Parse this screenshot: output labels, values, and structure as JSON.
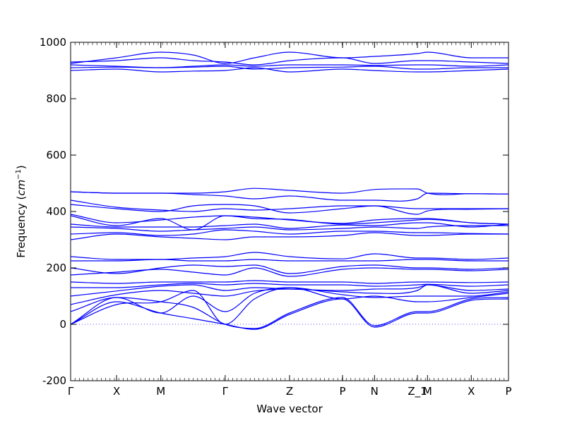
{
  "chart_data": {
    "type": "line",
    "xlabel": "Wave vector",
    "ylabel_text": "Frequency (",
    "ylabel_unit": "cm",
    "ylabel_exp": "−1",
    "ylabel_close": ")",
    "ylim": [
      -200,
      1000
    ],
    "yticks": [
      -200,
      0,
      200,
      400,
      600,
      800,
      1000
    ],
    "xlim": [
      0,
      1
    ],
    "xticks": [
      {
        "label": "Γ",
        "pos": 0.0
      },
      {
        "label": "X",
        "pos": 0.105
      },
      {
        "label": "M",
        "pos": 0.206
      },
      {
        "label": "Γ",
        "pos": 0.353
      },
      {
        "label": "Z",
        "pos": 0.5
      },
      {
        "label": "P",
        "pos": 0.621
      },
      {
        "label": "N",
        "pos": 0.694
      },
      {
        "label": "Z_1",
        "pos": 0.792
      },
      {
        "label": "M",
        "pos": 0.815
      },
      {
        "label": "X",
        "pos": 0.915
      },
      {
        "label": "P",
        "pos": 1.0
      }
    ],
    "zero_line": 0,
    "line_color": "#0000ff",
    "series": [
      {
        "x": [
          0,
          0.105,
          0.206,
          0.28,
          0.353,
          0.42,
          0.5,
          0.621,
          0.694,
          0.792,
          0.815,
          0.915,
          1.0
        ],
        "y": [
          0,
          80,
          40,
          20,
          0,
          -18,
          35,
          90,
          -10,
          40,
          40,
          85,
          90
        ]
      },
      {
        "x": [
          0,
          0.105,
          0.206,
          0.28,
          0.353,
          0.42,
          0.5,
          0.621,
          0.694,
          0.792,
          0.815,
          0.915,
          1.0
        ],
        "y": [
          0,
          95,
          80,
          60,
          0,
          -15,
          40,
          95,
          -5,
          45,
          45,
          90,
          95
        ]
      },
      {
        "x": [
          0,
          0.105,
          0.206,
          0.28,
          0.353,
          0.42,
          0.5,
          0.621,
          0.694,
          0.792,
          0.815,
          0.915,
          1.0
        ],
        "y": [
          0,
          70,
          80,
          120,
          0,
          90,
          130,
          90,
          100,
          80,
          80,
          95,
          110
        ]
      },
      {
        "x": [
          0,
          0.105,
          0.206,
          0.28,
          0.353,
          0.42,
          0.5,
          0.621,
          0.694,
          0.792,
          0.815,
          0.915,
          1.0
        ],
        "y": [
          45,
          95,
          40,
          100,
          45,
          110,
          130,
          105,
          95,
          100,
          100,
          100,
          115
        ]
      },
      {
        "x": [
          0,
          0.105,
          0.206,
          0.28,
          0.353,
          0.42,
          0.5,
          0.621,
          0.694,
          0.792,
          0.815,
          0.915,
          1.0
        ],
        "y": [
          70,
          105,
          120,
          110,
          100,
          118,
          125,
          115,
          110,
          120,
          140,
          110,
          120
        ]
      },
      {
        "x": [
          0,
          0.105,
          0.206,
          0.28,
          0.353,
          0.42,
          0.5,
          0.621,
          0.694,
          0.792,
          0.815,
          0.915,
          1.0
        ],
        "y": [
          100,
          118,
          135,
          140,
          120,
          130,
          125,
          120,
          125,
          130,
          140,
          120,
          125
        ]
      },
      {
        "x": [
          0,
          0.105,
          0.206,
          0.28,
          0.353,
          0.42,
          0.5,
          0.621,
          0.694,
          0.792,
          0.815,
          0.915,
          1.0
        ],
        "y": [
          130,
          130,
          140,
          145,
          140,
          145,
          140,
          140,
          135,
          140,
          142,
          135,
          140
        ]
      },
      {
        "x": [
          0,
          0.105,
          0.206,
          0.28,
          0.353,
          0.42,
          0.5,
          0.621,
          0.694,
          0.792,
          0.815,
          0.915,
          1.0
        ],
        "y": [
          150,
          145,
          150,
          150,
          150,
          155,
          150,
          150,
          145,
          150,
          150,
          148,
          150
        ]
      },
      {
        "x": [
          0,
          0.105,
          0.206,
          0.28,
          0.353,
          0.42,
          0.5,
          0.621,
          0.694,
          0.792,
          0.815,
          0.915,
          1.0
        ],
        "y": [
          175,
          185,
          195,
          185,
          175,
          200,
          170,
          195,
          200,
          195,
          195,
          190,
          195
        ]
      },
      {
        "x": [
          0,
          0.105,
          0.206,
          0.28,
          0.353,
          0.42,
          0.5,
          0.621,
          0.694,
          0.792,
          0.815,
          0.915,
          1.0
        ],
        "y": [
          200,
          180,
          200,
          210,
          205,
          210,
          180,
          205,
          210,
          200,
          200,
          195,
          200
        ]
      },
      {
        "x": [
          0,
          0.105,
          0.206,
          0.28,
          0.353,
          0.42,
          0.5,
          0.621,
          0.694,
          0.792,
          0.815,
          0.915,
          1.0
        ],
        "y": [
          225,
          225,
          230,
          225,
          225,
          230,
          225,
          225,
          225,
          230,
          230,
          225,
          225
        ]
      },
      {
        "x": [
          0,
          0.105,
          0.206,
          0.28,
          0.353,
          0.42,
          0.5,
          0.621,
          0.694,
          0.792,
          0.815,
          0.915,
          1.0
        ],
        "y": [
          240,
          230,
          230,
          235,
          240,
          255,
          240,
          232,
          250,
          235,
          235,
          230,
          235
        ]
      },
      {
        "x": [
          0,
          0.105,
          0.206,
          0.28,
          0.353,
          0.42,
          0.5,
          0.621,
          0.694,
          0.792,
          0.815,
          0.915,
          1.0
        ],
        "y": [
          300,
          320,
          310,
          305,
          300,
          310,
          310,
          315,
          325,
          315,
          315,
          320,
          320
        ]
      },
      {
        "x": [
          0,
          0.105,
          0.206,
          0.28,
          0.353,
          0.42,
          0.5,
          0.621,
          0.694,
          0.792,
          0.815,
          0.915,
          1.0
        ],
        "y": [
          320,
          325,
          315,
          320,
          335,
          330,
          320,
          330,
          330,
          325,
          325,
          322,
          320
        ]
      },
      {
        "x": [
          0,
          0.105,
          0.206,
          0.28,
          0.353,
          0.42,
          0.5,
          0.621,
          0.694,
          0.792,
          0.815,
          0.915,
          1.0
        ],
        "y": [
          345,
          340,
          330,
          335,
          340,
          345,
          335,
          340,
          345,
          340,
          345,
          350,
          350
        ]
      },
      {
        "x": [
          0,
          0.105,
          0.206,
          0.28,
          0.353,
          0.42,
          0.5,
          0.621,
          0.694,
          0.792,
          0.815,
          0.915,
          1.0
        ],
        "y": [
          355,
          345,
          345,
          345,
          350,
          355,
          340,
          352,
          350,
          360,
          360,
          345,
          355
        ]
      },
      {
        "x": [
          0,
          0.105,
          0.206,
          0.28,
          0.353,
          0.42,
          0.5,
          0.621,
          0.694,
          0.792,
          0.815,
          0.915,
          1.0
        ],
        "y": [
          385,
          350,
          375,
          335,
          385,
          375,
          372,
          355,
          360,
          370,
          372,
          360,
          355
        ]
      },
      {
        "x": [
          0,
          0.105,
          0.206,
          0.28,
          0.353,
          0.42,
          0.5,
          0.621,
          0.694,
          0.792,
          0.815,
          0.915,
          1.0
        ],
        "y": [
          390,
          360,
          370,
          380,
          385,
          380,
          370,
          358,
          370,
          375,
          375,
          360,
          355
        ]
      },
      {
        "x": [
          0,
          0.105,
          0.206,
          0.28,
          0.353,
          0.42,
          0.5,
          0.621,
          0.694,
          0.792,
          0.815,
          0.915,
          1.0
        ],
        "y": [
          425,
          410,
          400,
          420,
          425,
          420,
          395,
          410,
          420,
          390,
          402,
          408,
          410
        ]
      },
      {
        "x": [
          0,
          0.105,
          0.206,
          0.28,
          0.353,
          0.42,
          0.5,
          0.621,
          0.694,
          0.792,
          0.815,
          0.915,
          1.0
        ],
        "y": [
          440,
          415,
          405,
          400,
          410,
          405,
          410,
          420,
          420,
          410,
          410,
          410,
          410
        ]
      },
      {
        "x": [
          0,
          0.105,
          0.206,
          0.28,
          0.353,
          0.42,
          0.5,
          0.621,
          0.694,
          0.792,
          0.815,
          0.915,
          1.0
        ],
        "y": [
          470,
          465,
          465,
          460,
          455,
          445,
          455,
          440,
          440,
          445,
          465,
          463,
          462
        ]
      },
      {
        "x": [
          0,
          0.105,
          0.206,
          0.28,
          0.353,
          0.42,
          0.5,
          0.621,
          0.694,
          0.792,
          0.815,
          0.915,
          1.0
        ],
        "y": [
          470,
          465,
          465,
          465,
          470,
          482,
          475,
          465,
          478,
          480,
          465,
          463,
          462
        ]
      },
      {
        "x": [
          0,
          0.105,
          0.206,
          0.28,
          0.353,
          0.42,
          0.5,
          0.621,
          0.694,
          0.792,
          0.815,
          0.915,
          1.0
        ],
        "y": [
          900,
          905,
          895,
          898,
          900,
          910,
          895,
          905,
          900,
          895,
          895,
          900,
          905
        ]
      },
      {
        "x": [
          0,
          0.105,
          0.206,
          0.28,
          0.353,
          0.42,
          0.5,
          0.621,
          0.694,
          0.792,
          0.815,
          0.915,
          1.0
        ],
        "y": [
          910,
          912,
          910,
          912,
          915,
          905,
          910,
          912,
          915,
          905,
          905,
          910,
          910
        ]
      },
      {
        "x": [
          0,
          0.105,
          0.206,
          0.28,
          0.353,
          0.42,
          0.5,
          0.621,
          0.694,
          0.792,
          0.815,
          0.915,
          1.0
        ],
        "y": [
          920,
          915,
          910,
          915,
          920,
          915,
          920,
          920,
          918,
          920,
          920,
          915,
          920
        ]
      },
      {
        "x": [
          0,
          0.105,
          0.206,
          0.28,
          0.353,
          0.42,
          0.5,
          0.621,
          0.694,
          0.792,
          0.815,
          0.915,
          1.0
        ],
        "y": [
          930,
          935,
          945,
          935,
          930,
          920,
          935,
          945,
          925,
          935,
          935,
          930,
          925
        ]
      },
      {
        "x": [
          0,
          0.105,
          0.206,
          0.28,
          0.353,
          0.42,
          0.5,
          0.621,
          0.694,
          0.792,
          0.815,
          0.915,
          1.0
        ],
        "y": [
          925,
          945,
          965,
          955,
          925,
          945,
          965,
          945,
          950,
          960,
          965,
          945,
          945
        ]
      }
    ]
  }
}
